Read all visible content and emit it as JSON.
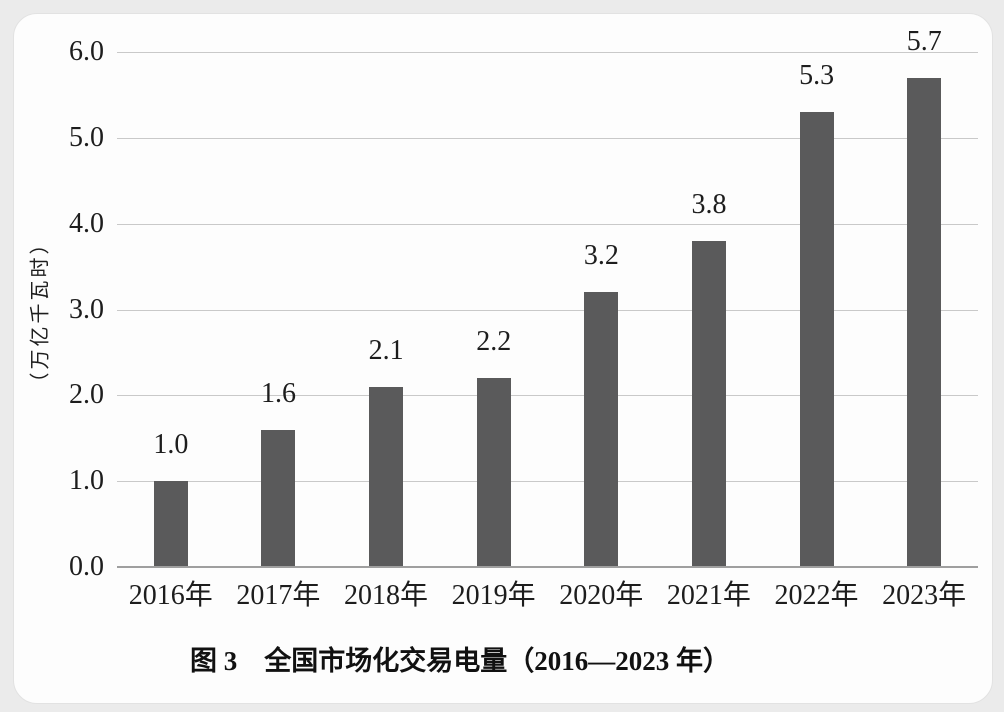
{
  "chart_data": {
    "type": "bar",
    "title": "图 3　全国市场化交易电量（2016—2023 年）",
    "categories": [
      "2016年",
      "2017年",
      "2018年",
      "2019年",
      "2020年",
      "2021年",
      "2022年",
      "2023年"
    ],
    "values": [
      1.0,
      1.6,
      2.1,
      2.2,
      3.2,
      3.8,
      5.3,
      5.7
    ],
    "data_labels": [
      "1.0",
      "1.6",
      "2.1",
      "2.2",
      "3.2",
      "3.8",
      "5.3",
      "5.7"
    ],
    "ylabel": "（万亿千瓦时）",
    "xlabel": "",
    "yticks": [
      "0.0",
      "1.0",
      "2.0",
      "3.0",
      "4.0",
      "5.0",
      "6.0"
    ],
    "ylim": [
      0,
      6
    ],
    "grid": true,
    "legend": false,
    "bar_color": "#5a5a5b",
    "grid_color": "#c9c9c9",
    "axis_color": "#9f9f9f",
    "text_color": "#1d1d1d"
  }
}
